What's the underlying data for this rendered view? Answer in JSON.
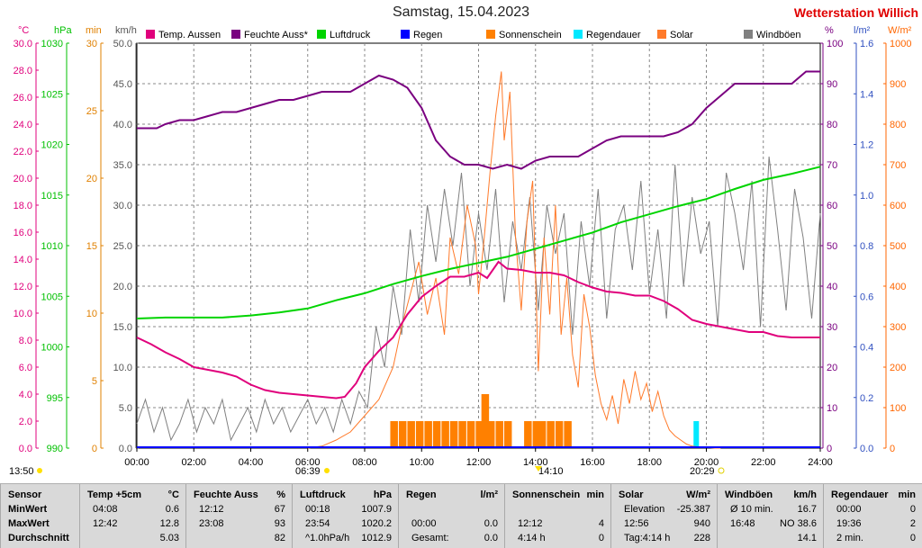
{
  "header": {
    "title": "Samstag, 15.04.2023",
    "station": "Wetterstation Willich"
  },
  "colors": {
    "temp": "#e0007c",
    "humid": "#7a0080",
    "pressure": "#00d400",
    "rain": "#0000ff",
    "sunshine": "#ff8000",
    "raindur": "#00e8ff",
    "solar": "#ff7a2a",
    "wind": "#808080"
  },
  "legend": [
    {
      "label": "Temp. Aussen",
      "color": "#e0007c"
    },
    {
      "label": "Feuchte Auss*",
      "color": "#7a0080"
    },
    {
      "label": "Luftdruck",
      "color": "#00d400"
    },
    {
      "label": "Regen",
      "color": "#0000ff"
    },
    {
      "label": "Sonnenschein",
      "color": "#ff8000"
    },
    {
      "label": "Regendauer",
      "color": "#00e8ff"
    },
    {
      "label": "Solar",
      "color": "#ff7a2a"
    },
    {
      "label": "Windböen",
      "color": "#808080"
    }
  ],
  "axes": {
    "temp": {
      "unit": "°C",
      "ticks": [
        "0.0",
        "2.0",
        "4.0",
        "6.0",
        "8.0",
        "10.0",
        "12.0",
        "14.0",
        "16.0",
        "18.0",
        "20.0",
        "22.0",
        "24.0",
        "26.0",
        "28.0",
        "30.0"
      ]
    },
    "pressure": {
      "unit": "hPa",
      "ticks": [
        "990",
        "995",
        "1000",
        "1005",
        "1010",
        "1015",
        "1020",
        "1025",
        "1030"
      ]
    },
    "sunmin": {
      "unit": "min",
      "ticks": [
        "0",
        "5",
        "10",
        "15",
        "20",
        "25",
        "30"
      ]
    },
    "wind": {
      "unit": "km/h",
      "ticks": [
        "0.0",
        "5.0",
        "10.0",
        "15.0",
        "20.0",
        "25.0",
        "30.0",
        "35.0",
        "40.0",
        "45.0",
        "50.0"
      ]
    },
    "humid": {
      "unit": "%",
      "ticks": [
        "0",
        "10",
        "20",
        "30",
        "40",
        "50",
        "60",
        "70",
        "80",
        "90",
        "100"
      ]
    },
    "rain": {
      "unit": "l/m²",
      "ticks": [
        "0.0",
        "0.2",
        "0.4",
        "0.6",
        "0.8",
        "1.0",
        "1.2",
        "1.4",
        "1.6"
      ]
    },
    "solar": {
      "unit": "W/m²",
      "ticks": [
        "0",
        "100",
        "200",
        "300",
        "400",
        "500",
        "600",
        "700",
        "800",
        "900",
        "1000"
      ]
    },
    "time": [
      "00:00",
      "02:00",
      "04:00",
      "06:00",
      "08:00",
      "10:00",
      "12:00",
      "14:00",
      "16:00",
      "18:00",
      "20:00",
      "22:00",
      "24:00"
    ]
  },
  "markers": {
    "sunrise_left": "13:50",
    "sunrise": "06:39",
    "noon": "14:10",
    "sunset": "20:29"
  },
  "chart_data": {
    "type": "line",
    "x_range": [
      "00:00",
      "24:00"
    ],
    "grid": true,
    "series": [
      {
        "name": "Temp. Aussen",
        "unit": "°C",
        "x": [
          0,
          0.5,
          1,
          1.5,
          2,
          2.5,
          3,
          3.5,
          4,
          4.5,
          5,
          5.5,
          6,
          6.5,
          7,
          7.3,
          7.7,
          8,
          8.5,
          9,
          9.5,
          10,
          10.5,
          11,
          11.5,
          12,
          12.3,
          12.7,
          13,
          13.5,
          14,
          14.5,
          15,
          15.5,
          16,
          16.5,
          17,
          17.5,
          18,
          18.5,
          19,
          19.5,
          20,
          20.5,
          21,
          21.5,
          22,
          22.5,
          23,
          23.5,
          24
        ],
        "y": [
          8.2,
          7.7,
          7.1,
          6.6,
          6.0,
          5.8,
          5.6,
          5.3,
          4.7,
          4.3,
          4.1,
          4.0,
          3.9,
          3.8,
          3.7,
          3.8,
          4.8,
          6.0,
          7.2,
          8.2,
          9.9,
          11.2,
          12.0,
          12.7,
          12.7,
          13.0,
          12.6,
          13.8,
          13.3,
          13.2,
          13.0,
          13.0,
          12.8,
          12.3,
          11.9,
          11.6,
          11.5,
          11.3,
          11.3,
          10.9,
          10.3,
          9.5,
          9.2,
          9.0,
          8.8,
          8.6,
          8.6,
          8.3,
          8.2,
          8.2,
          8.2
        ]
      },
      {
        "name": "Feuchte Auss*",
        "unit": "%",
        "x": [
          0,
          0.7,
          1,
          1.5,
          2,
          2.5,
          3,
          3.5,
          4,
          4.5,
          5,
          5.5,
          6,
          6.5,
          7,
          7.5,
          8,
          8.5,
          9,
          9.5,
          10,
          10.5,
          11,
          11.5,
          12,
          12.5,
          13,
          13.5,
          14,
          14.5,
          15,
          15.5,
          16,
          16.5,
          17,
          17.5,
          18,
          18.5,
          19,
          19.5,
          20,
          20.5,
          21,
          21.5,
          22,
          22.5,
          23,
          23.5,
          24
        ],
        "y": [
          79,
          79,
          80,
          81,
          81,
          82,
          83,
          83,
          84,
          85,
          86,
          86,
          87,
          88,
          88,
          88,
          90,
          92,
          91,
          89,
          84,
          76,
          72,
          70,
          70,
          69,
          70,
          69,
          71,
          72,
          72,
          72,
          74,
          76,
          77,
          77,
          77,
          77,
          78,
          80,
          84,
          87,
          90,
          90,
          90,
          90,
          90,
          93,
          93
        ]
      },
      {
        "name": "Luftdruck",
        "unit": "hPa",
        "x": [
          0,
          1,
          2,
          3,
          4,
          5,
          6,
          7,
          8,
          9,
          10,
          11,
          12,
          13,
          14,
          15,
          16,
          17,
          18,
          19,
          20,
          21,
          22,
          23,
          24
        ],
        "y": [
          1002.8,
          1002.9,
          1002.9,
          1002.9,
          1003.1,
          1003.4,
          1003.8,
          1004.6,
          1005.3,
          1006.2,
          1007.0,
          1007.7,
          1008.3,
          1008.9,
          1009.7,
          1010.5,
          1011.3,
          1012.3,
          1013.1,
          1013.9,
          1014.6,
          1015.6,
          1016.5,
          1017.1,
          1017.8
        ]
      },
      {
        "name": "Solar",
        "unit": "W/m²",
        "x": [
          6,
          6.5,
          7,
          7.5,
          8,
          8.5,
          9,
          9.3,
          9.6,
          9.9,
          10.2,
          10.5,
          10.8,
          11,
          11.3,
          11.6,
          11.9,
          12,
          12.2,
          12.4,
          12.6,
          12.8,
          12.9,
          13.1,
          13.3,
          13.5,
          13.7,
          13.9,
          14.1,
          14.3,
          14.5,
          14.7,
          14.9,
          15.1,
          15.3,
          15.5,
          15.7,
          15.9,
          16.1,
          16.3,
          16.5,
          16.7,
          16.9,
          17.1,
          17.3,
          17.5,
          17.7,
          17.9,
          18.1,
          18.3,
          18.5,
          18.7,
          18.9,
          19.1,
          19.3,
          19.5,
          19.7,
          20,
          20.3,
          20.5
        ],
        "y": [
          0,
          5,
          20,
          40,
          80,
          120,
          200,
          300,
          380,
          460,
          330,
          420,
          280,
          520,
          430,
          600,
          500,
          380,
          520,
          680,
          820,
          930,
          760,
          880,
          520,
          340,
          560,
          660,
          190,
          520,
          330,
          600,
          280,
          420,
          230,
          150,
          380,
          300,
          180,
          110,
          70,
          130,
          60,
          170,
          110,
          190,
          120,
          160,
          90,
          140,
          80,
          45,
          30,
          20,
          10,
          5,
          3,
          2,
          0,
          0
        ]
      },
      {
        "name": "Windböen",
        "unit": "km/h",
        "x": [
          0,
          0.3,
          0.6,
          0.9,
          1.2,
          1.5,
          1.8,
          2.1,
          2.4,
          2.7,
          3,
          3.3,
          3.6,
          3.9,
          4.2,
          4.5,
          4.8,
          5.1,
          5.4,
          5.7,
          6,
          6.3,
          6.6,
          6.9,
          7.2,
          7.5,
          7.8,
          8.1,
          8.4,
          8.7,
          9,
          9.3,
          9.6,
          9.9,
          10.2,
          10.5,
          10.8,
          11.1,
          11.4,
          11.7,
          12,
          12.3,
          12.6,
          12.9,
          13.2,
          13.5,
          13.8,
          14.1,
          14.4,
          14.7,
          15,
          15.3,
          15.6,
          15.9,
          16.2,
          16.5,
          16.8,
          17.1,
          17.4,
          17.7,
          18,
          18.3,
          18.6,
          18.9,
          19.2,
          19.5,
          19.8,
          20.1,
          20.4,
          20.7,
          21,
          21.3,
          21.6,
          21.9,
          22.2,
          22.5,
          22.8,
          23.1,
          23.4,
          23.7,
          24
        ],
        "y": [
          3,
          6,
          2,
          5,
          1,
          3,
          6,
          2,
          5,
          3,
          6,
          1,
          3,
          5,
          2,
          6,
          3,
          5,
          2,
          4,
          6,
          3,
          5,
          2,
          6,
          3,
          7,
          5,
          15,
          10,
          20,
          14,
          27,
          18,
          30,
          23,
          32,
          25,
          34,
          20,
          29,
          22,
          32,
          18,
          28,
          22,
          31,
          17,
          30,
          24,
          29,
          14,
          28,
          20,
          32,
          16,
          27,
          30,
          22,
          33,
          19,
          27,
          16,
          35,
          20,
          31,
          24,
          28,
          15,
          34,
          29,
          22,
          33,
          15,
          36,
          27,
          17,
          32,
          26,
          16,
          29
        ]
      },
      {
        "name": "Regen",
        "unit": "l/m²",
        "x": [
          0,
          24
        ],
        "y": [
          0,
          0
        ]
      },
      {
        "name": "Sonnenschein",
        "unit": "min",
        "x": [
          8.9,
          9.2,
          9.5,
          9.8,
          10.1,
          10.4,
          10.7,
          11,
          11.3,
          11.6,
          11.9,
          12.1,
          12.3,
          12.6,
          12.9,
          13.6,
          13.9,
          14.1,
          14.4,
          14.7,
          15
        ],
        "y": [
          2,
          2,
          2,
          2,
          2,
          2,
          2,
          2,
          2,
          2,
          2,
          4,
          2,
          2,
          2,
          2,
          2,
          2,
          2,
          2,
          2
        ]
      },
      {
        "name": "Regendauer",
        "unit": "min",
        "x": [
          19.55
        ],
        "y": [
          2
        ]
      }
    ]
  },
  "table": {
    "headers": [
      {
        "name": "Sensor",
        "unit": ""
      },
      {
        "name": "Temp +5cm",
        "unit": "°C"
      },
      {
        "name": "Feuchte Auss",
        "unit": "%"
      },
      {
        "name": "Luftdruck",
        "unit": "hPa"
      },
      {
        "name": "Regen",
        "unit": "l/m²"
      },
      {
        "name": "Sonnenschein",
        "unit": "min"
      },
      {
        "name": "Solar",
        "unit": "W/m²"
      },
      {
        "name": "Windböen",
        "unit": "km/h"
      },
      {
        "name": "Regendauer",
        "unit": "min"
      }
    ],
    "rows": [
      {
        "label": "MinWert",
        "cells": [
          [
            "04:08",
            "0.6"
          ],
          [
            "12:12",
            "67"
          ],
          [
            "00:18",
            "1007.9"
          ],
          [
            "",
            ""
          ],
          [
            "",
            ""
          ],
          [
            "Elevation",
            "-25.387"
          ],
          [
            "Ø 10 min.",
            "16.7"
          ],
          [
            "00:00",
            "0"
          ]
        ]
      },
      {
        "label": "MaxWert",
        "cells": [
          [
            "12:42",
            "12.8"
          ],
          [
            "23:08",
            "93"
          ],
          [
            "23:54",
            "1020.2"
          ],
          [
            "00:00",
            "0.0"
          ],
          [
            "12:12",
            "4"
          ],
          [
            "12:56",
            "940"
          ],
          [
            "16:48",
            "NO 38.6"
          ],
          [
            "19:36",
            "2"
          ]
        ]
      },
      {
        "label": "Durchschnitt",
        "cells": [
          [
            "",
            "5.03"
          ],
          [
            "",
            "82"
          ],
          [
            "^1.0hPa/h",
            "1012.9"
          ],
          [
            "Gesamt:",
            "0.0"
          ],
          [
            "4:14 h",
            "0"
          ],
          [
            "Tag:4:14 h",
            "228"
          ],
          [
            "",
            "14.1"
          ],
          [
            "2 min.",
            "0"
          ]
        ]
      }
    ]
  }
}
